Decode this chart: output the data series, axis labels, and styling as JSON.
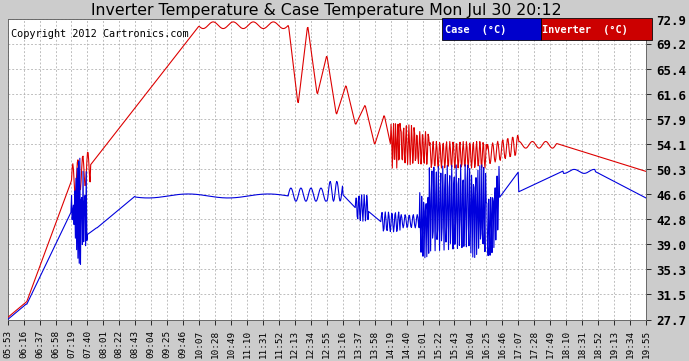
{
  "title": "Inverter Temperature & Case Temperature Mon Jul 30 20:12",
  "copyright": "Copyright 2012 Cartronics.com",
  "ylabel_right": [
    "72.9",
    "69.2",
    "65.4",
    "61.6",
    "57.9",
    "54.1",
    "50.3",
    "46.6",
    "42.8",
    "39.0",
    "35.3",
    "31.5",
    "27.7"
  ],
  "ymin": 27.7,
  "ymax": 72.9,
  "background_color": "#cccccc",
  "plot_bg_color": "#ffffff",
  "grid_color": "#999999",
  "case_color": "#0000dd",
  "inverter_color": "#dd0000",
  "legend_case_bg": "#0000cc",
  "legend_inv_bg": "#cc0000",
  "x_labels": [
    "05:53",
    "06:16",
    "06:37",
    "06:58",
    "07:19",
    "07:40",
    "08:01",
    "08:22",
    "08:43",
    "09:04",
    "09:25",
    "09:46",
    "10:07",
    "10:28",
    "10:49",
    "11:10",
    "11:31",
    "11:52",
    "12:13",
    "12:34",
    "12:55",
    "13:16",
    "13:37",
    "13:58",
    "14:19",
    "14:40",
    "15:01",
    "15:22",
    "15:43",
    "16:04",
    "16:25",
    "16:46",
    "17:07",
    "17:28",
    "17:49",
    "18:10",
    "18:31",
    "18:52",
    "19:13",
    "19:34",
    "19:55"
  ]
}
